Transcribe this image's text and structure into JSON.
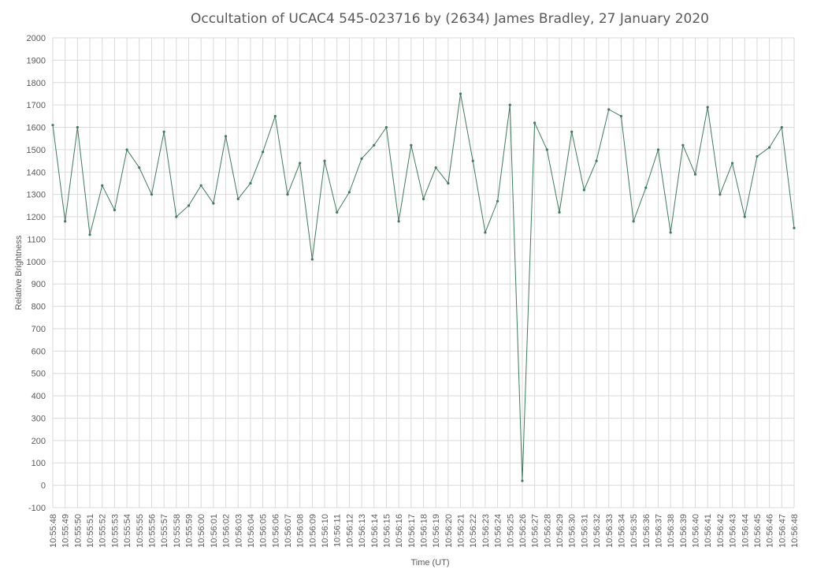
{
  "chart_data": {
    "type": "line",
    "title": "Occultation of UCAC4 545-023716 by (2634) James Bradley, 27 January 2020",
    "xlabel": "Time (UT)",
    "ylabel": "Relative Brightness",
    "ylim": [
      -100,
      2000
    ],
    "yticks": [
      "-100",
      "0",
      "100",
      "200",
      "300",
      "400",
      "500",
      "600",
      "700",
      "800",
      "900",
      "1000",
      "1100",
      "1200",
      "1300",
      "1400",
      "1500",
      "1600",
      "1700",
      "1800",
      "1900",
      "2000"
    ],
    "xticks": [
      "10:55:48",
      "10:55:49",
      "10:55:50",
      "10:55:51",
      "10:55:52",
      "10:55:53",
      "10:55:54",
      "10:55:55",
      "10:55:56",
      "10:55:57",
      "10:55:58",
      "10:55:59",
      "10:56:00",
      "10:56:01",
      "10:56:02",
      "10:56:03",
      "10:56:04",
      "10:56:05",
      "10:56:06",
      "10:56:07",
      "10:56:08",
      "10:56:09",
      "10:56:10",
      "10:56:11",
      "10:56:12",
      "10:56:13",
      "10:56:14",
      "10:56:15",
      "10:56:16",
      "10:56:17",
      "10:56:18",
      "10:56:19",
      "10:56:20",
      "10:56:21",
      "10:56:22",
      "10:56:23",
      "10:56:24",
      "10:56:25",
      "10:56:26",
      "10:56:27",
      "10:56:28",
      "10:56:29",
      "10:56:30",
      "10:56:31",
      "10:56:32",
      "10:56:33",
      "10:56:34",
      "10:56:35",
      "10:56:36",
      "10:56:37",
      "10:56:38",
      "10:56:39",
      "10:56:40",
      "10:56:41",
      "10:56:42",
      "10:56:43",
      "10:56:44",
      "10:56:45",
      "10:56:46",
      "10:56:47",
      "10:56:48"
    ],
    "grid": true,
    "legend": "none",
    "line_color": "#3f7a5e",
    "grid_color": "#d9d9d9",
    "text_color": "#595959",
    "series": [
      {
        "x": [
          "10:55:48",
          "10:55:49",
          "10:55:50",
          "10:55:51",
          "10:55:52",
          "10:55:53",
          "10:55:54",
          "10:55:55",
          "10:55:56",
          "10:55:57",
          "10:55:58",
          "10:55:59",
          "10:56:00",
          "10:56:01",
          "10:56:02",
          "10:56:03",
          "10:56:04",
          "10:56:05",
          "10:56:06",
          "10:56:07",
          "10:56:08",
          "10:56:09",
          "10:56:10",
          "10:56:11",
          "10:56:12",
          "10:56:13",
          "10:56:14",
          "10:56:15",
          "10:56:16",
          "10:56:17",
          "10:56:18",
          "10:56:19",
          "10:56:20",
          "10:56:21",
          "10:56:22",
          "10:56:23",
          "10:56:24",
          "10:56:25",
          "10:56:26",
          "10:56:27",
          "10:56:28",
          "10:56:29",
          "10:56:30",
          "10:56:31",
          "10:56:32",
          "10:56:33",
          "10:56:34",
          "10:56:35",
          "10:56:36",
          "10:56:37",
          "10:56:38",
          "10:56:39",
          "10:56:40",
          "10:56:41",
          "10:56:42",
          "10:56:43",
          "10:56:44",
          "10:56:45",
          "10:56:46",
          "10:56:47",
          "10:56:48"
        ],
        "values": [
          1610,
          1180,
          1600,
          1120,
          1340,
          1230,
          1500,
          1420,
          1300,
          1580,
          1200,
          1250,
          1340,
          1260,
          1560,
          1280,
          1350,
          1490,
          1650,
          1300,
          1440,
          1010,
          1450,
          1220,
          1310,
          1460,
          1520,
          1600,
          1180,
          1520,
          1280,
          1420,
          1350,
          1750,
          1450,
          1130,
          1270,
          1700,
          20,
          1620,
          1500,
          1220,
          1580,
          1320,
          1450,
          1680,
          1650,
          1180,
          1330,
          1500,
          1130,
          1520,
          1390,
          1690,
          1300,
          1440,
          1200,
          1470,
          1510,
          1600,
          1150
        ]
      }
    ]
  }
}
